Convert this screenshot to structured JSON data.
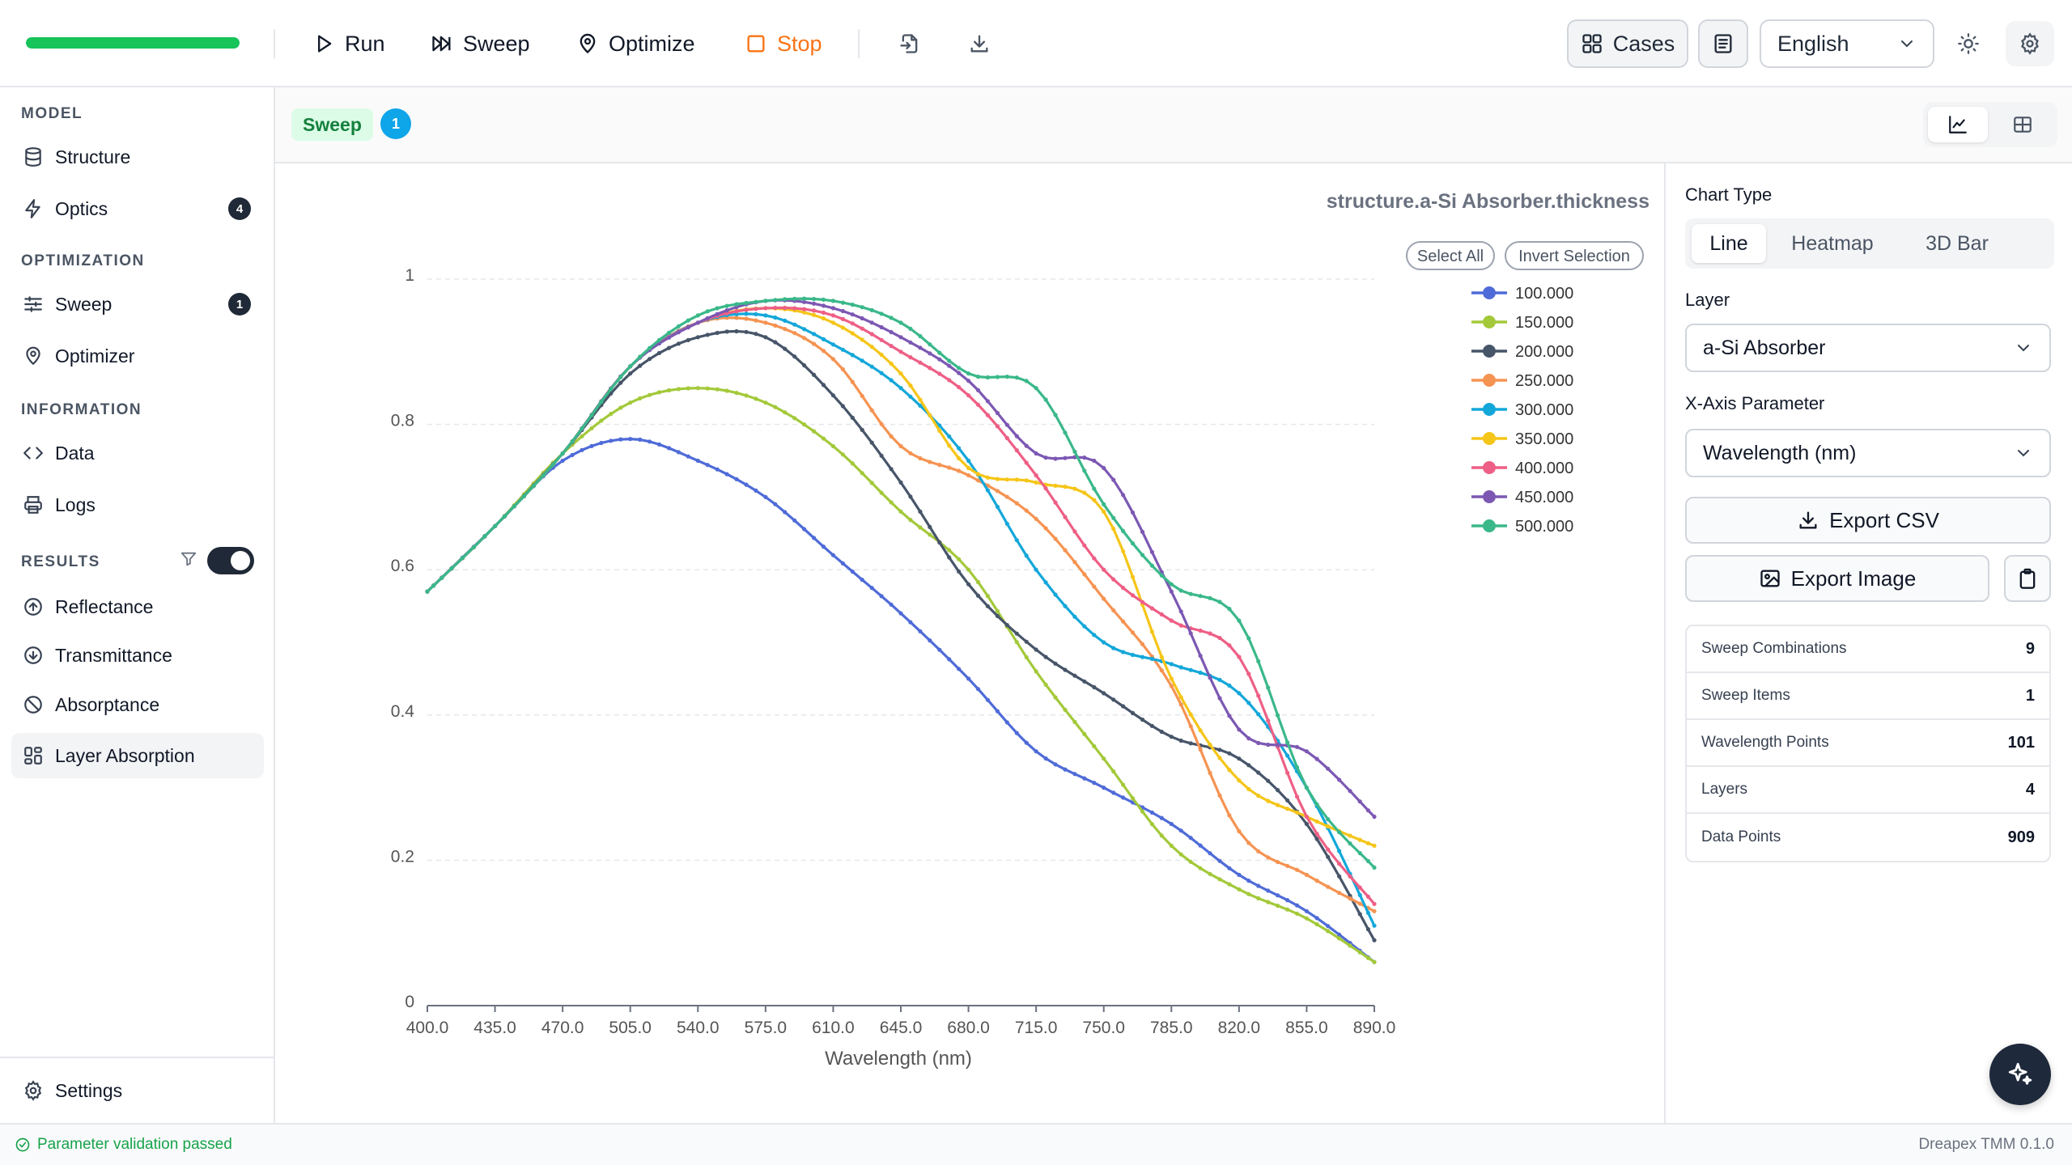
{
  "toolbar": {
    "progress": 1.0,
    "run_label": "Run",
    "sweep_label": "Sweep",
    "optimize_label": "Optimize",
    "stop_label": "Stop",
    "cases_label": "Cases",
    "language": "English"
  },
  "sidebar": {
    "model_title": "MODEL",
    "structure_label": "Structure",
    "optics_label": "Optics",
    "optics_badge": "4",
    "optimization_title": "OPTIMIZATION",
    "sweep_label": "Sweep",
    "sweep_badge": "1",
    "optimizer_label": "Optimizer",
    "information_title": "INFORMATION",
    "data_label": "Data",
    "logs_label": "Logs",
    "results_title": "RESULTS",
    "reflectance_label": "Reflectance",
    "transmittance_label": "Transmittance",
    "absorptance_label": "Absorptance",
    "layer_absorption_label": "Layer Absorption",
    "settings_label": "Settings"
  },
  "subheader": {
    "tag": "Sweep",
    "count": "1"
  },
  "right_panel": {
    "chart_type_label": "Chart Type",
    "chart_types": [
      "Line",
      "Heatmap",
      "3D Bar"
    ],
    "layer_label": "Layer",
    "layer_value": "a-Si Absorber",
    "x_axis_label": "X-Axis Parameter",
    "x_axis_value": "Wavelength (nm)",
    "export_csv": "Export CSV",
    "export_image": "Export Image",
    "stats": [
      {
        "label": "Sweep Combinations",
        "value": "9"
      },
      {
        "label": "Sweep Items",
        "value": "1"
      },
      {
        "label": "Wavelength Points",
        "value": "101"
      },
      {
        "label": "Layers",
        "value": "4"
      },
      {
        "label": "Data Points",
        "value": "909"
      }
    ]
  },
  "status": {
    "message": "Parameter validation passed",
    "version": "Dreapex TMM 0.1.0"
  },
  "colors": {
    "accent_green": "#16c45a",
    "stop_orange": "#f97316",
    "badge_blue": "#0ea5e9"
  },
  "chart_data": {
    "type": "line",
    "title": "structure.a-Si Absorber.thickness",
    "xlabel": "Wavelength (nm)",
    "ylabel": "",
    "xlim": [
      400,
      890
    ],
    "ylim": [
      0,
      1
    ],
    "x_ticks": [
      "400.0",
      "435.0",
      "470.0",
      "505.0",
      "540.0",
      "575.0",
      "610.0",
      "645.0",
      "680.0",
      "715.0",
      "750.0",
      "785.0",
      "820.0",
      "855.0",
      "890.0"
    ],
    "y_ticks": [
      "0",
      "0.2",
      "0.4",
      "0.6",
      "0.8",
      "1"
    ],
    "legend_select_all": "Select All",
    "legend_invert": "Invert Selection",
    "legend_position": "top-right",
    "x": [
      400,
      435,
      470,
      505,
      540,
      575,
      610,
      645,
      680,
      715,
      750,
      785,
      820,
      855,
      890
    ],
    "series": [
      {
        "name": "100.000",
        "color": "#4f6bd8",
        "values": [
          0.57,
          0.66,
          0.75,
          0.78,
          0.75,
          0.7,
          0.62,
          0.54,
          0.45,
          0.35,
          0.3,
          0.25,
          0.18,
          0.13,
          0.06
        ]
      },
      {
        "name": "150.000",
        "color": "#a3c93a",
        "values": [
          0.57,
          0.66,
          0.76,
          0.83,
          0.85,
          0.83,
          0.77,
          0.68,
          0.6,
          0.46,
          0.34,
          0.22,
          0.16,
          0.12,
          0.06
        ]
      },
      {
        "name": "200.000",
        "color": "#475569",
        "values": [
          0.57,
          0.66,
          0.76,
          0.87,
          0.92,
          0.92,
          0.84,
          0.72,
          0.58,
          0.49,
          0.43,
          0.37,
          0.34,
          0.25,
          0.09
        ]
      },
      {
        "name": "250.000",
        "color": "#f59352",
        "values": [
          0.57,
          0.66,
          0.76,
          0.88,
          0.94,
          0.94,
          0.89,
          0.77,
          0.73,
          0.67,
          0.56,
          0.44,
          0.24,
          0.18,
          0.13
        ]
      },
      {
        "name": "300.000",
        "color": "#13a7d9",
        "values": [
          0.57,
          0.66,
          0.76,
          0.88,
          0.94,
          0.95,
          0.91,
          0.85,
          0.75,
          0.6,
          0.5,
          0.47,
          0.43,
          0.3,
          0.11
        ]
      },
      {
        "name": "350.000",
        "color": "#f5c518",
        "values": [
          0.57,
          0.66,
          0.76,
          0.88,
          0.94,
          0.96,
          0.94,
          0.87,
          0.74,
          0.72,
          0.68,
          0.45,
          0.31,
          0.26,
          0.22
        ]
      },
      {
        "name": "400.000",
        "color": "#ee5f85",
        "values": [
          0.57,
          0.66,
          0.76,
          0.88,
          0.94,
          0.96,
          0.95,
          0.9,
          0.84,
          0.73,
          0.6,
          0.53,
          0.48,
          0.26,
          0.14
        ]
      },
      {
        "name": "450.000",
        "color": "#7c58b3",
        "values": [
          0.57,
          0.66,
          0.76,
          0.88,
          0.94,
          0.97,
          0.96,
          0.92,
          0.86,
          0.76,
          0.74,
          0.57,
          0.38,
          0.35,
          0.26
        ]
      },
      {
        "name": "500.000",
        "color": "#3ab88a",
        "values": [
          0.57,
          0.66,
          0.76,
          0.88,
          0.95,
          0.97,
          0.97,
          0.94,
          0.87,
          0.85,
          0.69,
          0.58,
          0.53,
          0.3,
          0.19
        ]
      }
    ]
  }
}
